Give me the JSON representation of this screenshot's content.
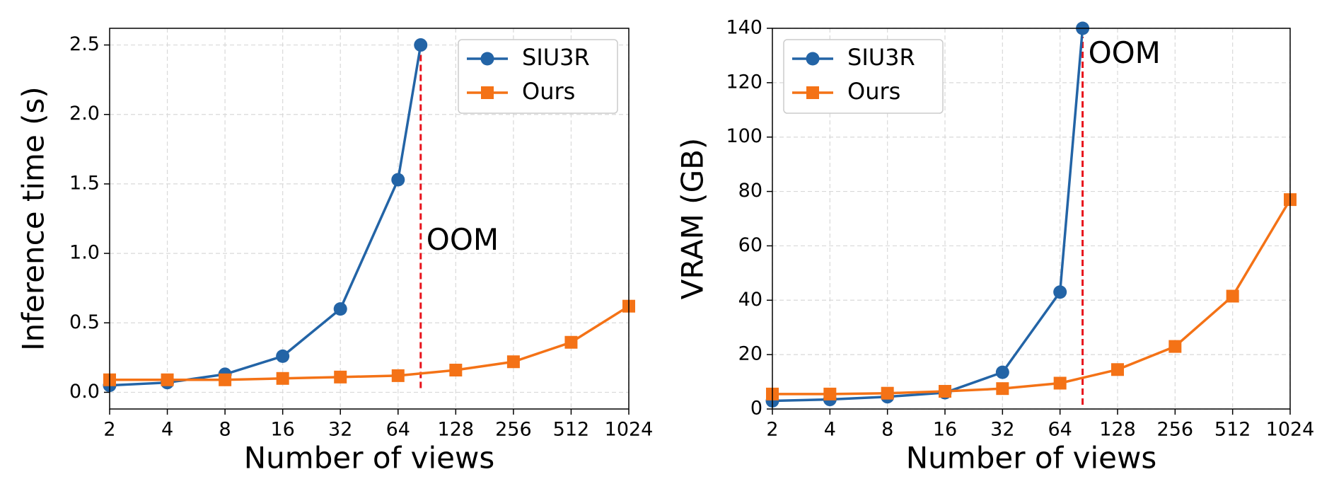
{
  "chart_data": [
    {
      "type": "line",
      "x_label": "Number of views",
      "y_label": "Inference time (s)",
      "xscale": "log2",
      "xlim": [
        2,
        1024
      ],
      "xticks": [
        2,
        4,
        8,
        16,
        32,
        64,
        128,
        256,
        512,
        1024
      ],
      "ylim": [
        -0.12,
        2.62
      ],
      "yticks": [
        {
          "value": 0,
          "label": "0.0"
        },
        0.5,
        {
          "value": 1,
          "label": "1.0"
        },
        1.5,
        {
          "value": 2,
          "label": "2.0"
        },
        2.5
      ],
      "grid": true,
      "legend": "upper right",
      "series": [
        {
          "name": "SIU3R",
          "color": "#2364a6",
          "marker": "circle",
          "x": [
            2,
            4,
            8,
            16,
            32,
            64,
            84
          ],
          "values": [
            0.05,
            0.07,
            0.13,
            0.26,
            0.6,
            1.53,
            2.5
          ]
        },
        {
          "name": "Ours",
          "color": "#f47216",
          "marker": "square",
          "x": [
            2,
            4,
            8,
            16,
            32,
            64,
            128,
            256,
            512,
            1024
          ],
          "values": [
            0.09,
            0.09,
            0.09,
            0.1,
            0.11,
            0.12,
            0.16,
            0.22,
            0.36,
            0.62
          ]
        }
      ],
      "annotation": {
        "text": "OOM",
        "x": 84,
        "color": "#e8141c"
      }
    },
    {
      "type": "line",
      "x_label": "Number of views",
      "y_label": "VRAM (GB)",
      "xscale": "log2",
      "xlim": [
        2,
        1024
      ],
      "xticks": [
        2,
        4,
        8,
        16,
        32,
        64,
        128,
        256,
        512,
        1024
      ],
      "ylim": [
        0,
        140
      ],
      "yticks": [
        0,
        20,
        40,
        60,
        80,
        100,
        120,
        140
      ],
      "grid": true,
      "legend": "upper left",
      "series": [
        {
          "name": "SIU3R",
          "color": "#2364a6",
          "marker": "circle",
          "x": [
            2,
            4,
            8,
            16,
            32,
            64,
            84
          ],
          "values": [
            3,
            3.5,
            4.5,
            6,
            13.5,
            43,
            140
          ]
        },
        {
          "name": "Ours",
          "color": "#f47216",
          "marker": "square",
          "x": [
            2,
            4,
            8,
            16,
            32,
            64,
            128,
            256,
            512,
            1024
          ],
          "values": [
            5.5,
            5.5,
            5.8,
            6.5,
            7.5,
            9.5,
            14.5,
            23,
            41.5,
            77
          ]
        }
      ],
      "annotation": {
        "text": "OOM",
        "x": 84,
        "color": "#e8141c"
      }
    }
  ]
}
